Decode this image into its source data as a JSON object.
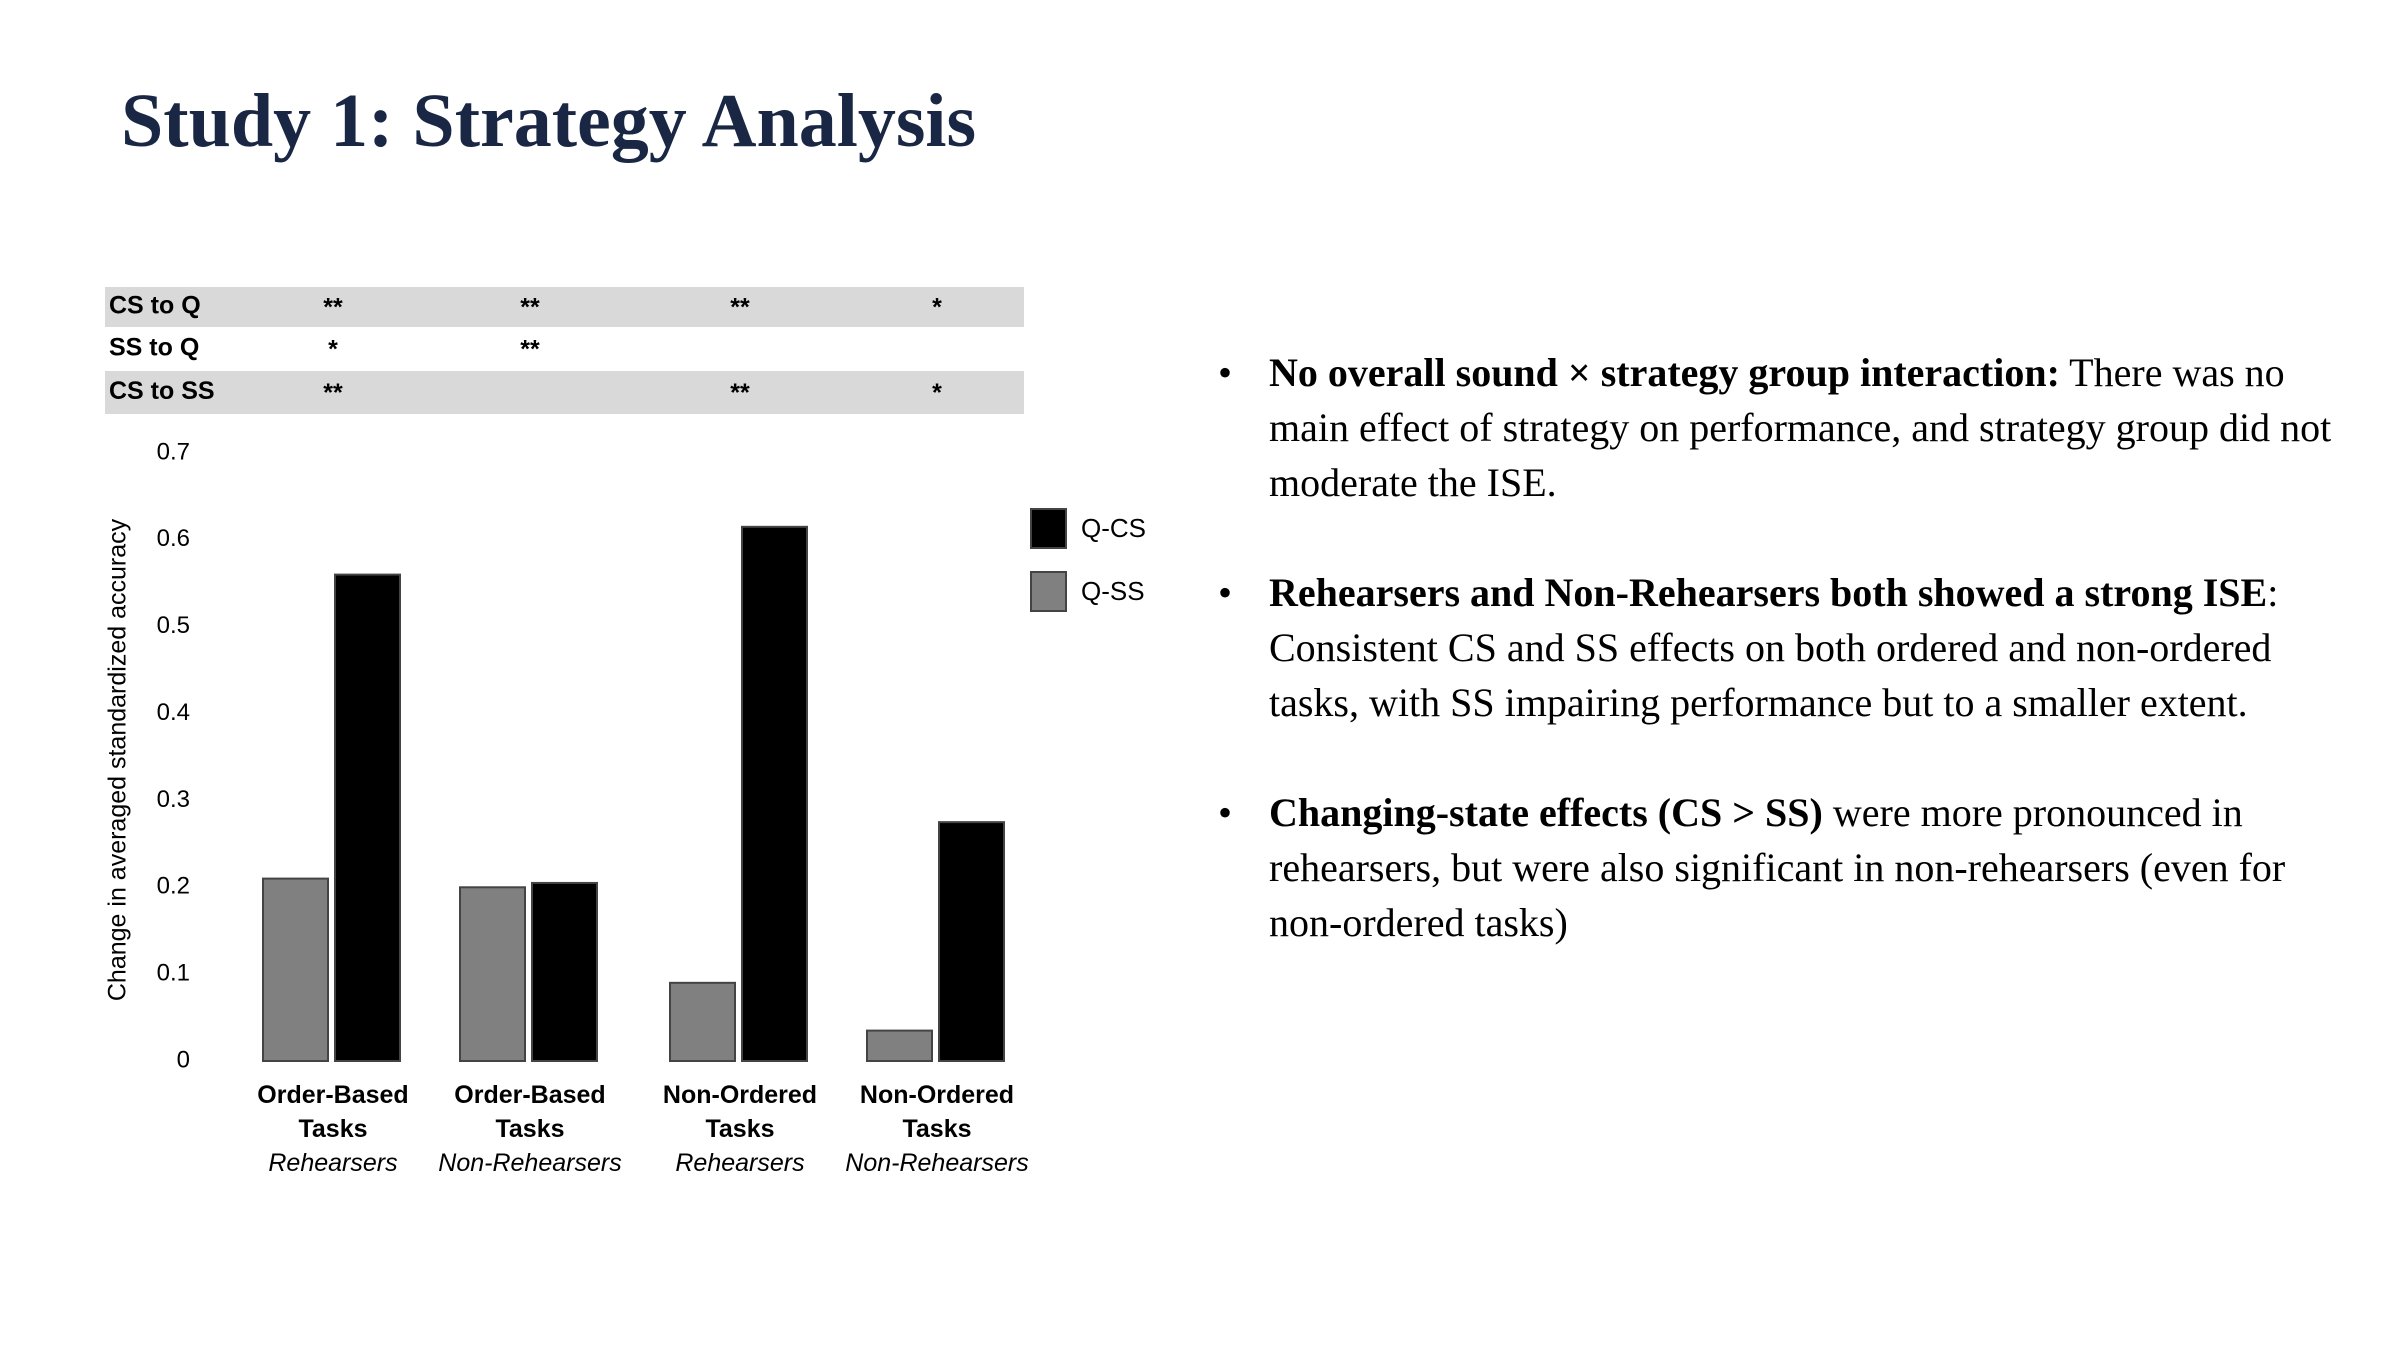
{
  "title": "Study 1: Strategy Analysis",
  "chart_data": {
    "type": "bar",
    "y_label": "Change in averaged standardized accuracy",
    "categories": [
      "Order-Based Tasks",
      "Order-Based Tasks",
      "Non-Ordered Tasks",
      "Non-Ordered Tasks"
    ],
    "category_groups": [
      "Rehearsers",
      "Non-Rehearsers",
      "Rehearsers",
      "Non-Rehearsers"
    ],
    "series": [
      {
        "name": "Q-SS",
        "color": "#808080",
        "values": [
          0.21,
          0.2,
          0.09,
          0.035
        ]
      },
      {
        "name": "Q-CS",
        "color": "#000000",
        "values": [
          0.56,
          0.205,
          0.615,
          0.275
        ]
      }
    ],
    "legend_order": [
      1,
      0
    ],
    "ylim": [
      0,
      0.7
    ],
    "yticks": [
      {
        "value": 0,
        "label": "0"
      },
      0.1,
      0.2,
      0.3,
      0.4,
      0.5,
      0.6,
      0.7
    ],
    "significance": [
      {
        "label": "CS to Q",
        "marks": [
          "**",
          "**",
          "**",
          "*"
        ]
      },
      {
        "label": "SS to Q",
        "marks": [
          "*",
          "**",
          null,
          null
        ]
      },
      {
        "label": "CS to SS",
        "marks": [
          "**",
          null,
          "**",
          "*"
        ]
      }
    ]
  },
  "bullets": [
    {
      "bold": "No overall sound × strategy group interaction:",
      "text": " There was no main effect of strategy on performance, and strategy group did not moderate the ISE."
    },
    {
      "bold": "Rehearsers and Non-Rehearsers both showed a strong ISE",
      "text": ": Consistent CS and SS effects on both ordered and non-ordered tasks, with SS impairing performance but to a smaller extent."
    },
    {
      "bold": "Changing-state effects (CS > SS)",
      "text": " were more pronounced in rehearsers, but were also significant in non-rehearsers (even for non-ordered tasks)"
    }
  ]
}
